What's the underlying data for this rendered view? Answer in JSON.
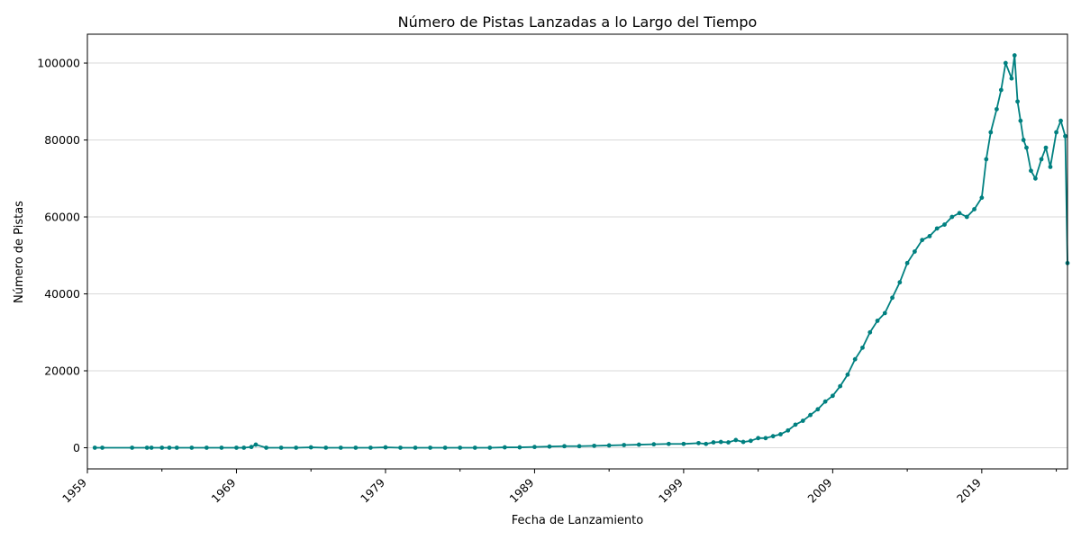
{
  "chart_data": {
    "type": "line",
    "title": "Número de Pistas Lanzadas a lo Largo del Tiempo",
    "xlabel": "Fecha de Lanzamiento",
    "ylabel": "Número de Pistas",
    "x_tick_labels": [
      "1959",
      "1969",
      "1979",
      "1989",
      "1999",
      "2009",
      "2019"
    ],
    "y_tick_labels": [
      "0",
      "20000",
      "40000",
      "60000",
      "80000",
      "100000"
    ],
    "xlim": [
      1959.0,
      2024.75
    ],
    "ylim": [
      -5500,
      107500
    ],
    "grid": "horizontal",
    "color": "#008080",
    "series": [
      {
        "x": [
          1959.5,
          1960.0,
          1962.0,
          1963.0,
          1963.3,
          1964.0,
          1964.5,
          1965.0,
          1966.0,
          1967.0,
          1968.0,
          1969.0,
          1969.5,
          1970.0,
          1970.3,
          1971.0,
          1972.0,
          1973.0,
          1974.0,
          1975.0,
          1976.0,
          1977.0,
          1978.0,
          1979.0,
          1980.0,
          1981.0,
          1982.0,
          1983.0,
          1984.0,
          1985.0,
          1986.0,
          1987.0,
          1988.0,
          1989.0,
          1990.0,
          1991.0,
          1992.0,
          1993.0,
          1994.0,
          1995.0,
          1996.0,
          1997.0,
          1998.0,
          1999.0,
          2000.0,
          2000.5,
          2001.0,
          2001.5,
          2002.0,
          2002.5,
          2003.0,
          2003.5,
          2004.0,
          2004.5,
          2005.0,
          2005.5,
          2006.0,
          2006.5,
          2007.0,
          2007.5,
          2008.0,
          2008.5,
          2009.0,
          2009.5,
          2010.0,
          2010.5,
          2011.0,
          2011.5,
          2012.0,
          2012.5,
          2013.0,
          2013.5,
          2014.0,
          2014.5,
          2015.0,
          2015.5,
          2016.0,
          2016.5,
          2017.0,
          2017.5,
          2018.0,
          2018.5,
          2019.0,
          2019.3,
          2019.6,
          2020.0,
          2020.3,
          2020.6,
          2021.0,
          2021.2,
          2021.4,
          2021.6,
          2021.8,
          2022.0,
          2022.3,
          2022.6,
          2023.0,
          2023.3,
          2023.6,
          2024.0,
          2024.3,
          2024.6,
          2024.75
        ],
        "values": [
          0,
          0,
          0,
          0,
          0,
          0,
          0,
          0,
          0,
          0,
          0,
          0,
          0,
          200,
          800,
          0,
          0,
          0,
          100,
          0,
          0,
          0,
          0,
          100,
          0,
          0,
          0,
          0,
          0,
          0,
          0,
          100,
          100,
          200,
          300,
          400,
          400,
          500,
          600,
          700,
          800,
          900,
          1000,
          1000,
          1200,
          1000,
          1400,
          1500,
          1400,
          2000,
          1500,
          1800,
          2500,
          2500,
          3000,
          3500,
          4500,
          6000,
          7000,
          8500,
          10000,
          12000,
          13500,
          16000,
          19000,
          23000,
          26000,
          30000,
          33000,
          35000,
          39000,
          43000,
          48000,
          51000,
          54000,
          55000,
          57000,
          58000,
          60000,
          61000,
          60000,
          62000,
          65000,
          75000,
          82000,
          88000,
          93000,
          100000,
          96000,
          102000,
          90000,
          85000,
          80000,
          78000,
          72000,
          70000,
          75000,
          78000,
          73000,
          82000,
          85000,
          81000,
          48000
        ]
      }
    ]
  }
}
